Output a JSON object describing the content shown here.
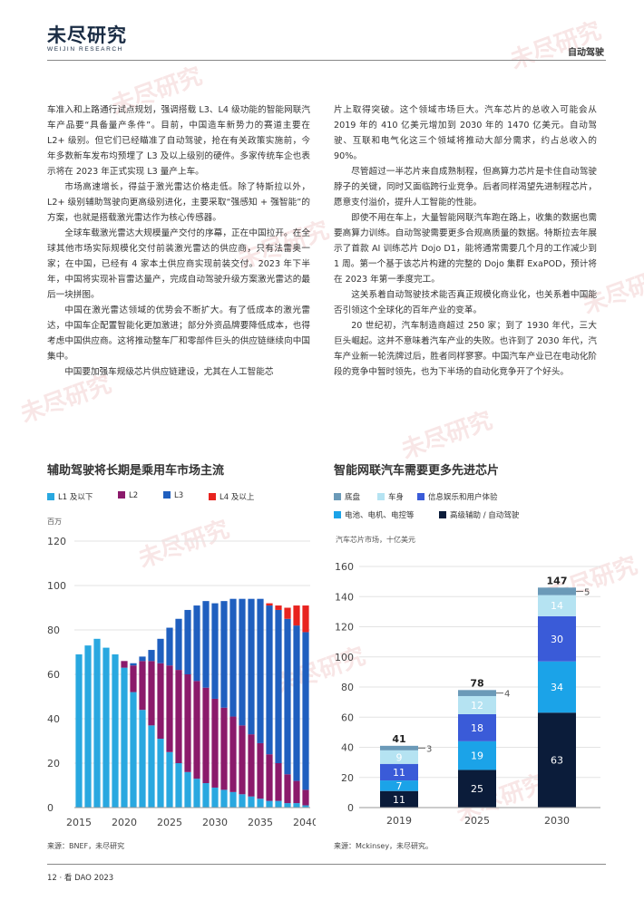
{
  "header": {
    "logo_cn": "未尽研究",
    "logo_en": "WEIJIN RESEARCH",
    "section": "自动驾驶"
  },
  "left_column": [
    "车准入和上路通行试点规划，强调搭载 L3、L4 级功能的智能网联汽车产品要“具备量产条件”。目前，中国造车新势力的赛道主要在 L2+ 级别。但它们已经瞄准了自动驾驶，抢在有关政策实施前，今年多数新车发布均预埋了 L3 及以上级别的硬件。多家传统车企也表示将在 2023 年正式实现 L3 量产上车。",
    "市场高速增长，得益于激光雷达价格走低。除了特斯拉以外，L2+ 级别辅助驾驶向更高级别进化，主要采取“强感知 + 强智能”的方案，也就是搭载激光雷达作为核心传感器。",
    "全球车载激光雷达大规模量产交付的序幕，正在中国拉开。在全球其他市场实际规模化交付前装激光雷达的供应商，只有法雷奥一家；在中国，已经有 4 家本土供应商实现前装交付。2023 年下半年，中国将实现补盲雷达量产，完成自动驾驶升级方案激光雷达的最后一块拼图。",
    "中国在激光雷达领域的优势会不断扩大。有了低成本的激光雷达，中国车企配置智能化更加激进；部分外资品牌要降低成本，也得考虑中国供应商。这将推动整车厂和零部件巨头的供应链继续向中国集中。",
    "中国要加强车规级芯片供应链建设，尤其在人工智能芯"
  ],
  "right_column": [
    "片上取得突破。这个领域市场巨大。汽车芯片的总收入可能会从 2019 年的 410 亿美元增加到 2030 年的 1470 亿美元。自动驾驶、互联和电气化这三个领域将推动大部分需求，约占总收入的 90%。",
    "尽管超过一半芯片来自成熟制程，但高算力芯片是卡住自动驾驶脖子的关键，同时又面临跨行业竞争。后者同样渴望先进制程芯片，愿意支付溢价，提升人工智能的性能。",
    "即使不用在车上，大量智能网联汽车跑在路上，收集的数据也需要高算力训练。自动驾驶需要更多合规高质量的数据。特斯拉去年展示了首款 AI 训练芯片 Dojo D1，能将通常需要几个月的工作减少到 1 周。第一个基于该芯片构建的完整的 Dojo 集群 ExaPOD，预计将在 2023 年第一季度完工。",
    "这关系着自动驾驶技术能否真正规模化商业化，也关系着中国能否引领这个全球化的百年产业的变革。",
    "20 世纪初，汽车制造商超过 250 家；到了 1930 年代，三大巨头崛起。这并不意味着汽车产业的失败。也许到了 2030 年代，汽车产业新一轮洗牌过后，胜者同样寥寥。中国汽车产业已在电动化阶段的竞争中暂时领先，也为下半场的自动化竞争开了个好头。"
  ],
  "chart1": {
    "title": "辅助驾驶将长期是乘用车市场主流",
    "unit": "百万",
    "source": "来源：BNEF，未尽研究",
    "colors": {
      "l1": "#29a8e0",
      "l2": "#8b1a6b",
      "l3": "#1f5fbf",
      "l4": "#e8231f"
    }
  },
  "chart2": {
    "title": "智能网联汽车需要更多先进芯片",
    "unit": "汽车芯片市场，十亿美元",
    "source": "来源：Mckinsey，未尽研究。",
    "colors": {
      "chassis": "#6b9ab8",
      "body": "#b5e3f2",
      "info": "#3a5bd8",
      "power": "#1ba3e8",
      "adas": "#0b1c3a"
    }
  },
  "chart_data": [
    {
      "type": "bar",
      "title": "辅助驾驶将长期是乘用车市场主流",
      "ylabel": "百万",
      "ylim": [
        0,
        120
      ],
      "yticks": [
        "120",
        "100",
        "80",
        "60",
        "40",
        "20",
        "0"
      ],
      "xticks": [
        "2015",
        "2020",
        "2025",
        "2030",
        "2035",
        "2040"
      ],
      "stacked": true,
      "x": [
        2015,
        2016,
        2017,
        2018,
        2019,
        2020,
        2021,
        2022,
        2023,
        2024,
        2025,
        2026,
        2027,
        2028,
        2029,
        2030,
        2031,
        2032,
        2033,
        2034,
        2035,
        2036,
        2037,
        2038,
        2039,
        2040
      ],
      "series": [
        {
          "name": "L1 及以下",
          "values": [
            69,
            73,
            76,
            72,
            69,
            63,
            52,
            44,
            37,
            31,
            25,
            20,
            16,
            13,
            11,
            9,
            8,
            7,
            6,
            5,
            4,
            3,
            3,
            2,
            2,
            1
          ]
        },
        {
          "name": "L2",
          "values": [
            0,
            0,
            0,
            0,
            0,
            3,
            12,
            22,
            29,
            34,
            39,
            42,
            44,
            44,
            43,
            40,
            37,
            34,
            31,
            28,
            25,
            21,
            17,
            13,
            10,
            7
          ]
        },
        {
          "name": "L3",
          "values": [
            0,
            0,
            0,
            0,
            0,
            0,
            1,
            2,
            5,
            11,
            17,
            23,
            29,
            34,
            39,
            43,
            48,
            53,
            57,
            61,
            65,
            67,
            69,
            70,
            70,
            71
          ]
        },
        {
          "name": "L4 及以上",
          "values": [
            0,
            0,
            0,
            0,
            0,
            0,
            0,
            0,
            0,
            0,
            0,
            0,
            0,
            0,
            0,
            0,
            0,
            0,
            0,
            0,
            0,
            1,
            2,
            5,
            9,
            12
          ]
        }
      ]
    },
    {
      "type": "bar",
      "title": "智能网联汽车需要更多先进芯片",
      "ylabel": "汽车芯片市场，十亿美元",
      "ylim": [
        0,
        160
      ],
      "yticks": [
        "160",
        "140",
        "120",
        "100",
        "80",
        "60",
        "40",
        "20",
        "0"
      ],
      "categories": [
        "2019",
        "2025",
        "2030"
      ],
      "stacked": true,
      "totals": [
        "41",
        "78",
        "147"
      ],
      "series": [
        {
          "name": "高级辅助 / 自动驾驶",
          "values": [
            11,
            25,
            63
          ]
        },
        {
          "name": "电池、电机、电控等",
          "values": [
            7,
            19,
            34
          ]
        },
        {
          "name": "信息娱乐和用户体验",
          "values": [
            11,
            18,
            30
          ]
        },
        {
          "name": "车身",
          "values": [
            9,
            12,
            14
          ]
        },
        {
          "name": "底盘",
          "values": [
            3,
            4,
            5
          ]
        }
      ]
    }
  ],
  "footer": {
    "text": "12 · 看 DAO 2023"
  }
}
